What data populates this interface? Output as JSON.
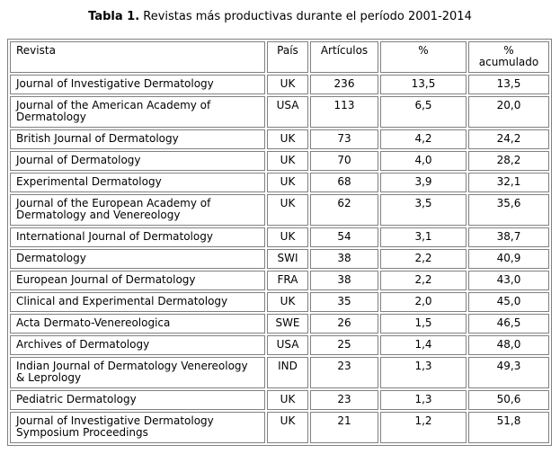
{
  "title": {
    "prefix": "Tabla 1.",
    "text": " Revistas más productivas durante el período 2001-2014"
  },
  "table": {
    "headers": {
      "revista": "Revista",
      "pais": "País",
      "articulos": "Artículos",
      "pct": "%",
      "pct_acumulado": "% acumulado"
    },
    "rows": [
      {
        "revista": "Journal of Investigative Dermatology",
        "pais": "UK",
        "articulos": "236",
        "pct": "13,5",
        "pct_acum": "13,5"
      },
      {
        "revista": "Journal of the American Academy of Dermatology",
        "pais": "USA",
        "articulos": "113",
        "pct": "6,5",
        "pct_acum": "20,0"
      },
      {
        "revista": "British Journal of Dermatology",
        "pais": "UK",
        "articulos": "73",
        "pct": "4,2",
        "pct_acum": "24,2"
      },
      {
        "revista": "Journal of Dermatology",
        "pais": "UK",
        "articulos": "70",
        "pct": "4,0",
        "pct_acum": "28,2"
      },
      {
        "revista": "Experimental Dermatology",
        "pais": "UK",
        "articulos": "68",
        "pct": "3,9",
        "pct_acum": "32,1"
      },
      {
        "revista": "Journal of the European Academy of Dermatology and Venereology",
        "pais": "UK",
        "articulos": "62",
        "pct": "3,5",
        "pct_acum": "35,6"
      },
      {
        "revista": "International Journal of Dermatology",
        "pais": "UK",
        "articulos": "54",
        "pct": "3,1",
        "pct_acum": "38,7"
      },
      {
        "revista": "Dermatology",
        "pais": "SWI",
        "articulos": "38",
        "pct": "2,2",
        "pct_acum": "40,9"
      },
      {
        "revista": "European Journal of Dermatology",
        "pais": "FRA",
        "articulos": "38",
        "pct": "2,2",
        "pct_acum": "43,0"
      },
      {
        "revista": "Clinical and Experimental Dermatology",
        "pais": "UK",
        "articulos": "35",
        "pct": "2,0",
        "pct_acum": "45,0"
      },
      {
        "revista": "Acta Dermato-Venereologica",
        "pais": "SWE",
        "articulos": "26",
        "pct": "1,5",
        "pct_acum": "46,5"
      },
      {
        "revista": "Archives of Dermatology",
        "pais": "USA",
        "articulos": "25",
        "pct": "1,4",
        "pct_acum": "48,0"
      },
      {
        "revista": "Indian Journal of Dermatology Venereology & Leprology",
        "pais": "IND",
        "articulos": "23",
        "pct": "1,3",
        "pct_acum": "49,3"
      },
      {
        "revista": "Pediatric Dermatology",
        "pais": "UK",
        "articulos": "23",
        "pct": "1,3",
        "pct_acum": "50,6"
      },
      {
        "revista": "Journal of Investigative Dermatology Symposium Proceedings",
        "pais": "UK",
        "articulos": "21",
        "pct": "1,2",
        "pct_acum": "51,8"
      }
    ]
  }
}
